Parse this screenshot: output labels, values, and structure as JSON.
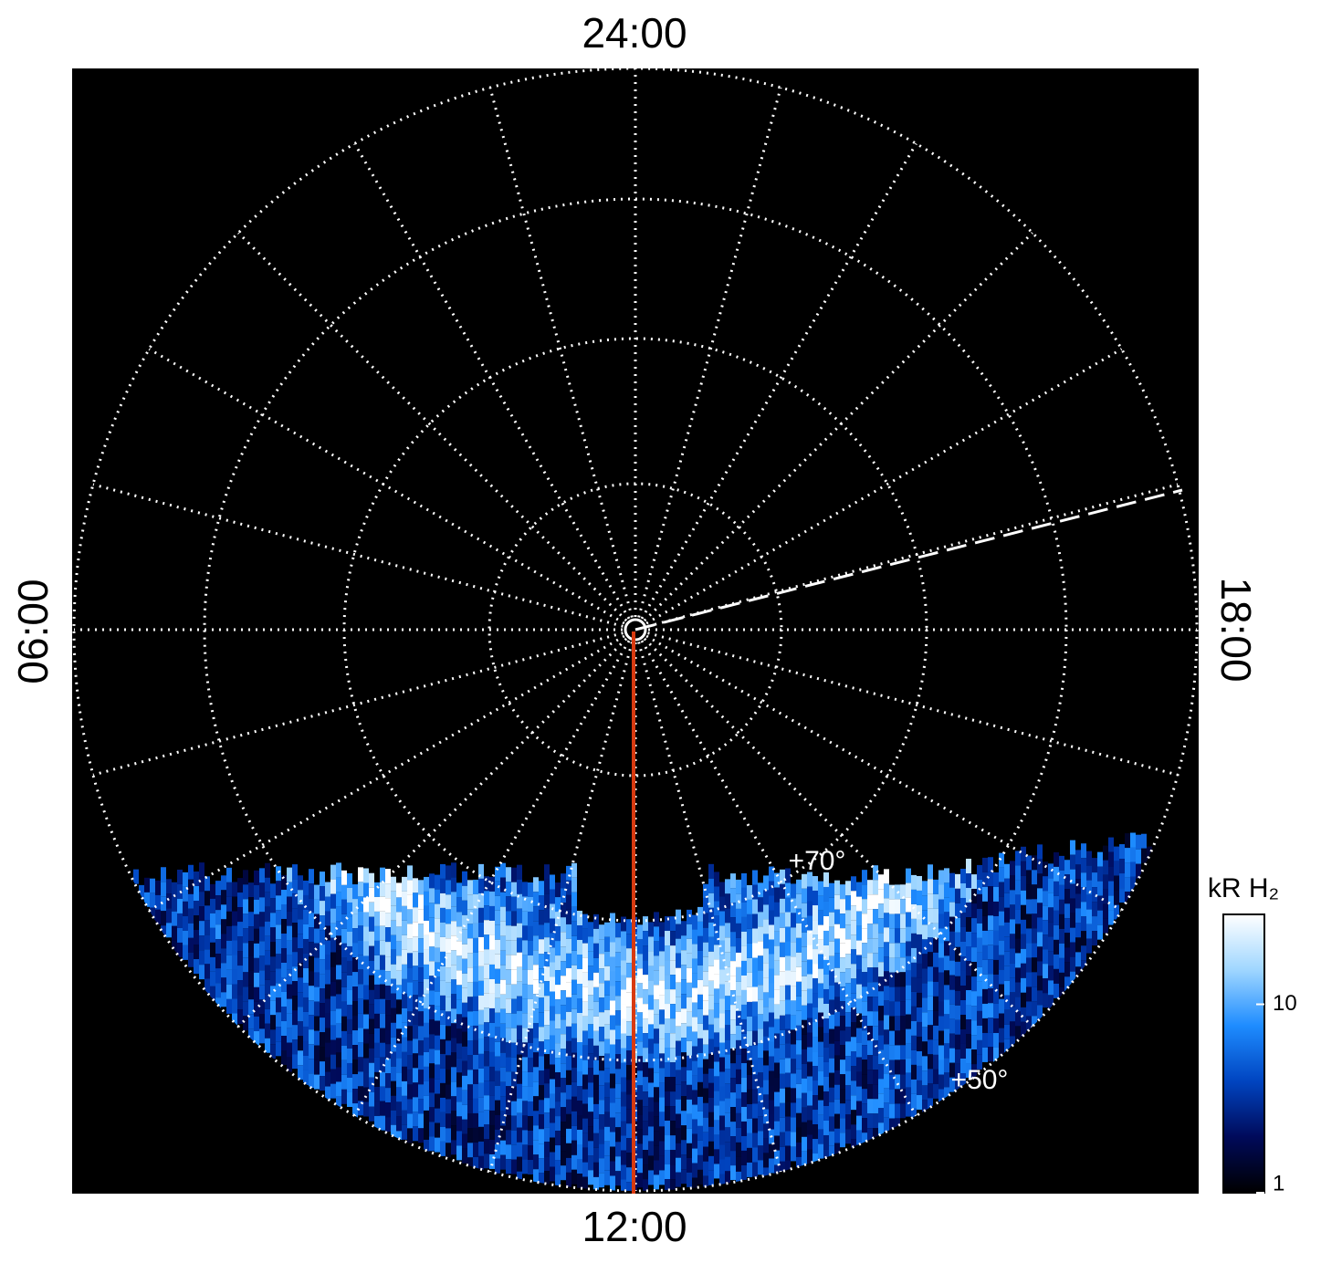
{
  "chart_data": {
    "type": "polar-map",
    "labels": {
      "top": "24:00",
      "left": "06:00",
      "bottom": "12:00",
      "right": "18:00"
    },
    "annotations": [
      "+70°",
      "+50°"
    ],
    "colorbar": {
      "title": "kR H₂",
      "ylim": [
        1,
        30
      ],
      "yticks": [
        1,
        10
      ],
      "log": true,
      "colors": [
        "#000000",
        "#000a5a",
        "#0044c0",
        "#1e8cff",
        "#9fd6ff",
        "#ffffff"
      ]
    }
  }
}
